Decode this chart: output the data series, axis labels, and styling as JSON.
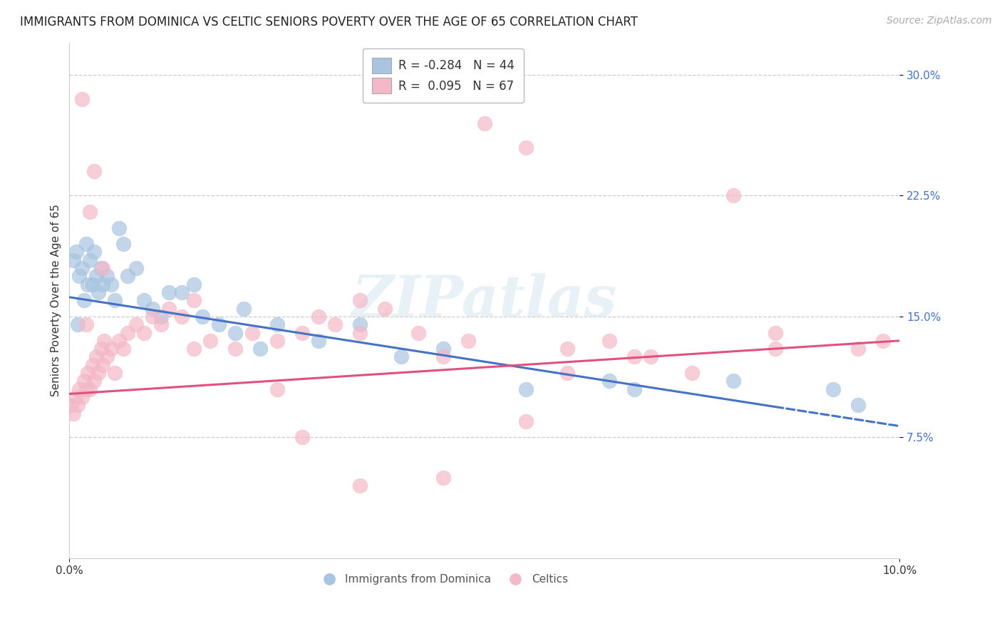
{
  "title": "IMMIGRANTS FROM DOMINICA VS CELTIC SENIORS POVERTY OVER THE AGE OF 65 CORRELATION CHART",
  "source": "Source: ZipAtlas.com",
  "ylabel": "Seniors Poverty Over the Age of 65",
  "xlim": [
    0.0,
    10.0
  ],
  "ylim": [
    0.0,
    32.0
  ],
  "yticks": [
    7.5,
    15.0,
    22.5,
    30.0
  ],
  "ytick_labels": [
    "7.5%",
    "15.0%",
    "22.5%",
    "30.0%"
  ],
  "legend1_label": "R = -0.284   N = 44",
  "legend2_label": "R =  0.095   N = 67",
  "dot_color_blue": "#a8c4e0",
  "dot_color_pink": "#f4b8c8",
  "line_color_blue": "#4472c4",
  "line_color_pink": "#e05080",
  "watermark": "ZIPatlas",
  "title_fontsize": 12,
  "source_fontsize": 10,
  "axis_label_fontsize": 11,
  "tick_fontsize": 11,
  "tick_color": "#4472c4",
  "blue_line_x0": 0.0,
  "blue_line_y0": 16.2,
  "blue_line_x1": 10.0,
  "blue_line_y1": 8.2,
  "blue_dash_start_x": 8.5,
  "pink_line_x0": 0.0,
  "pink_line_y0": 10.2,
  "pink_line_x1": 10.0,
  "pink_line_y1": 13.5,
  "blue_scatter_x": [
    0.05,
    0.08,
    0.1,
    0.12,
    0.15,
    0.18,
    0.2,
    0.22,
    0.25,
    0.28,
    0.3,
    0.32,
    0.35,
    0.38,
    0.4,
    0.45,
    0.5,
    0.55,
    0.6,
    0.65,
    0.7,
    0.8,
    0.9,
    1.0,
    1.1,
    1.2,
    1.35,
    1.5,
    1.6,
    1.8,
    2.0,
    2.1,
    2.3,
    2.5,
    3.0,
    3.5,
    4.0,
    4.5,
    5.5,
    6.5,
    6.8,
    8.0,
    9.2,
    9.5
  ],
  "blue_scatter_y": [
    18.5,
    19.0,
    14.5,
    17.5,
    18.0,
    16.0,
    19.5,
    17.0,
    18.5,
    17.0,
    19.0,
    17.5,
    16.5,
    18.0,
    17.0,
    17.5,
    17.0,
    16.0,
    20.5,
    19.5,
    17.5,
    18.0,
    16.0,
    15.5,
    15.0,
    16.5,
    16.5,
    17.0,
    15.0,
    14.5,
    14.0,
    15.5,
    13.0,
    14.5,
    13.5,
    14.5,
    12.5,
    13.0,
    10.5,
    11.0,
    10.5,
    11.0,
    10.5,
    9.5
  ],
  "pink_scatter_x": [
    0.02,
    0.05,
    0.07,
    0.1,
    0.12,
    0.15,
    0.18,
    0.2,
    0.22,
    0.25,
    0.28,
    0.3,
    0.32,
    0.35,
    0.38,
    0.4,
    0.42,
    0.45,
    0.5,
    0.55,
    0.6,
    0.65,
    0.7,
    0.8,
    0.9,
    1.0,
    1.1,
    1.2,
    1.35,
    1.5,
    1.7,
    2.0,
    2.2,
    2.5,
    2.8,
    3.0,
    3.2,
    3.5,
    3.8,
    4.2,
    4.5,
    4.8,
    5.0,
    5.5,
    6.0,
    6.5,
    7.0,
    7.5,
    8.0,
    8.5,
    2.8,
    3.5,
    4.5,
    5.5,
    6.0,
    6.8,
    8.5,
    9.5,
    9.8,
    3.5,
    1.5,
    2.5,
    0.3,
    0.25,
    0.4,
    0.15,
    0.2
  ],
  "pink_scatter_y": [
    9.5,
    9.0,
    10.0,
    9.5,
    10.5,
    10.0,
    11.0,
    10.5,
    11.5,
    10.5,
    12.0,
    11.0,
    12.5,
    11.5,
    13.0,
    12.0,
    13.5,
    12.5,
    13.0,
    11.5,
    13.5,
    13.0,
    14.0,
    14.5,
    14.0,
    15.0,
    14.5,
    15.5,
    15.0,
    16.0,
    13.5,
    13.0,
    14.0,
    13.5,
    14.0,
    15.0,
    14.5,
    14.0,
    15.5,
    14.0,
    12.5,
    13.5,
    27.0,
    25.5,
    13.0,
    13.5,
    12.5,
    11.5,
    22.5,
    14.0,
    7.5,
    4.5,
    5.0,
    8.5,
    11.5,
    12.5,
    13.0,
    13.0,
    13.5,
    16.0,
    13.0,
    10.5,
    24.0,
    21.5,
    18.0,
    28.5,
    14.5
  ]
}
